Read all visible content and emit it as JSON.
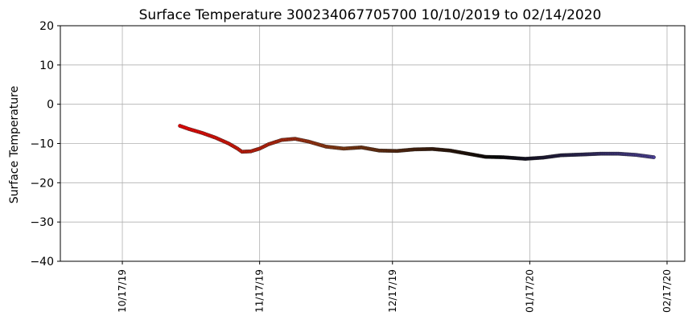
{
  "chart_data": {
    "type": "scatter",
    "title": "Surface Temperature 300234067705700  10/10/2019 to 02/14/2020",
    "ylabel": "Surface Temperature",
    "xlabel": "",
    "ylim": [
      -40,
      20
    ],
    "yticks": [
      -40,
      -30,
      -20,
      -10,
      0,
      10,
      20
    ],
    "xlim": [
      "2019-10-03",
      "2020-02-21"
    ],
    "xticks": [
      {
        "date": "2019-10-17",
        "label": "10/17/19"
      },
      {
        "date": "2019-11-17",
        "label": "11/17/19"
      },
      {
        "date": "2019-12-17",
        "label": "12/17/19"
      },
      {
        "date": "2020-01-17",
        "label": "01/17/20"
      },
      {
        "date": "2020-02-17",
        "label": "02/17/20"
      }
    ],
    "grid": true,
    "colors": {
      "early": "#ff0000",
      "mid": "#8b3a0f",
      "late": "#000000",
      "end": "#4b3f9a"
    },
    "series": [
      {
        "date": "2019-10-30",
        "value": -5.5
      },
      {
        "date": "2019-11-01",
        "value": -6.3
      },
      {
        "date": "2019-11-04",
        "value": -7.3
      },
      {
        "date": "2019-11-07",
        "value": -8.5
      },
      {
        "date": "2019-11-10",
        "value": -10.0
      },
      {
        "date": "2019-11-12",
        "value": -11.3
      },
      {
        "date": "2019-11-13",
        "value": -12.1
      },
      {
        "date": "2019-11-15",
        "value": -12.0
      },
      {
        "date": "2019-11-17",
        "value": -11.3
      },
      {
        "date": "2019-11-19",
        "value": -10.2
      },
      {
        "date": "2019-11-22",
        "value": -9.1
      },
      {
        "date": "2019-11-25",
        "value": -8.8
      },
      {
        "date": "2019-11-28",
        "value": -9.5
      },
      {
        "date": "2019-12-02",
        "value": -10.8
      },
      {
        "date": "2019-12-06",
        "value": -11.3
      },
      {
        "date": "2019-12-10",
        "value": -11.0
      },
      {
        "date": "2019-12-14",
        "value": -11.8
      },
      {
        "date": "2019-12-18",
        "value": -11.9
      },
      {
        "date": "2019-12-22",
        "value": -11.5
      },
      {
        "date": "2019-12-26",
        "value": -11.4
      },
      {
        "date": "2019-12-30",
        "value": -11.8
      },
      {
        "date": "2020-01-03",
        "value": -12.6
      },
      {
        "date": "2020-01-07",
        "value": -13.4
      },
      {
        "date": "2020-01-11",
        "value": -13.5
      },
      {
        "date": "2020-01-16",
        "value": -13.9
      },
      {
        "date": "2020-01-20",
        "value": -13.6
      },
      {
        "date": "2020-01-24",
        "value": -13.0
      },
      {
        "date": "2020-01-29",
        "value": -12.8
      },
      {
        "date": "2020-02-02",
        "value": -12.6
      },
      {
        "date": "2020-02-06",
        "value": -12.6
      },
      {
        "date": "2020-02-10",
        "value": -12.9
      },
      {
        "date": "2020-02-14",
        "value": -13.5
      }
    ]
  }
}
